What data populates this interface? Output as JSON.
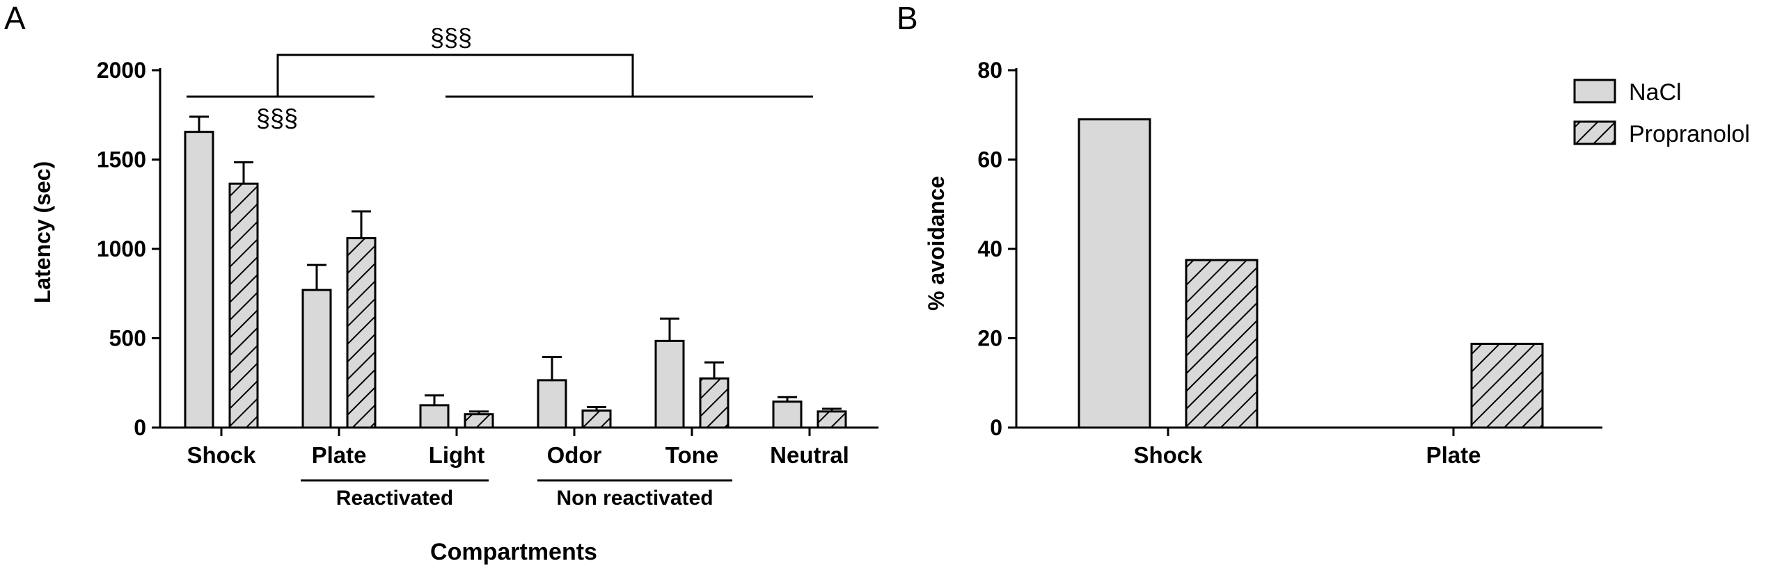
{
  "panels": {
    "a": "A",
    "b": "B"
  },
  "legend": {
    "items": [
      {
        "label": "NaCl"
      },
      {
        "label": "Propranolol"
      }
    ]
  },
  "colors": {
    "nacl_fill": "#d9d9d9",
    "stroke": "#000000"
  },
  "chart_data": [
    {
      "type": "bar",
      "panel": "A",
      "title": "",
      "xlabel": "Compartments",
      "ylabel": "Latency (sec)",
      "ylim": [
        0,
        2000
      ],
      "yticks": [
        0,
        500,
        1000,
        1500,
        2000
      ],
      "categories": [
        "Shock",
        "Plate",
        "Light",
        "Odor",
        "Tone",
        "Neutral"
      ],
      "series": [
        {
          "name": "NaCl",
          "values": [
            1655,
            770,
            125,
            265,
            485,
            145
          ],
          "errors": [
            85,
            140,
            55,
            130,
            125,
            25
          ]
        },
        {
          "name": "Propranolol",
          "values": [
            1365,
            1060,
            75,
            95,
            275,
            90
          ],
          "errors": [
            120,
            150,
            15,
            20,
            90,
            15
          ]
        }
      ],
      "groups": [
        {
          "label": "Reactivated",
          "categories": [
            "Plate",
            "Light"
          ]
        },
        {
          "label": "Non reactivated",
          "categories": [
            "Odor",
            "Tone"
          ]
        }
      ],
      "annotations": [
        "§§§",
        "§§§"
      ],
      "grid": false,
      "legend": "top-right"
    },
    {
      "type": "bar",
      "panel": "B",
      "title": "",
      "xlabel": "",
      "ylabel": "% avoidance",
      "ylim": [
        0,
        80
      ],
      "yticks": [
        0,
        20,
        40,
        60,
        80
      ],
      "categories": [
        "Shock",
        "Plate"
      ],
      "series": [
        {
          "name": "NaCl",
          "values": [
            69,
            0
          ]
        },
        {
          "name": "Propranolol",
          "values": [
            37.5,
            18.75
          ]
        }
      ],
      "grid": false,
      "legend": "top-right"
    }
  ]
}
